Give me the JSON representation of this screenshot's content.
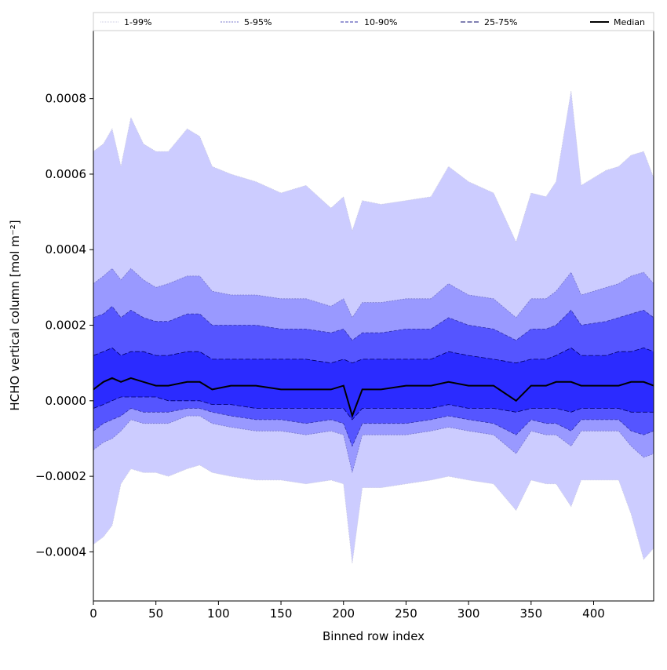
{
  "chart_data": {
    "type": "area",
    "title": "",
    "xlabel": "Binned row index",
    "ylabel": "HCHO vertical column [mol m⁻²]",
    "xlim": [
      0,
      448
    ],
    "ylim": [
      -0.00053,
      0.00098
    ],
    "grid": false,
    "legend_placement": "top (horizontal strip above plot)",
    "x_ticks": [
      {
        "value": 0,
        "label": "0"
      },
      {
        "value": 50,
        "label": "50"
      },
      {
        "value": 100,
        "label": "100"
      },
      {
        "value": 150,
        "label": "150"
      },
      {
        "value": 200,
        "label": "200"
      },
      {
        "value": 250,
        "label": "250"
      },
      {
        "value": 300,
        "label": "300"
      },
      {
        "value": 350,
        "label": "350"
      },
      {
        "value": 400,
        "label": "400"
      }
    ],
    "y_ticks": [
      {
        "value": -0.0004,
        "label": "−0.0004"
      },
      {
        "value": -0.0002,
        "label": "−0.0002"
      },
      {
        "value": 0.0,
        "label": "0.0000"
      },
      {
        "value": 0.0002,
        "label": "0.0002"
      },
      {
        "value": 0.0004,
        "label": "0.0004"
      },
      {
        "value": 0.0006,
        "label": "0.0006"
      },
      {
        "value": 0.0008,
        "label": "0.0008"
      }
    ],
    "x": [
      0,
      8,
      15,
      22,
      30,
      40,
      50,
      60,
      75,
      85,
      95,
      110,
      130,
      150,
      170,
      190,
      200,
      207,
      215,
      230,
      250,
      270,
      284,
      300,
      320,
      338,
      350,
      362,
      370,
      382,
      390,
      410,
      420,
      430,
      440,
      448
    ],
    "series": [
      {
        "name": "1-99%",
        "color": "#ccccff",
        "line_color": "#c8c8e0",
        "dash": "1,1",
        "lower": [
          -0.00038,
          -0.00036,
          -0.00033,
          -0.00022,
          -0.00018,
          -0.00019,
          -0.00019,
          -0.0002,
          -0.00018,
          -0.00017,
          -0.00019,
          -0.0002,
          -0.00021,
          -0.00021,
          -0.00022,
          -0.00021,
          -0.00022,
          -0.00043,
          -0.00023,
          -0.00023,
          -0.00022,
          -0.00021,
          -0.0002,
          -0.00021,
          -0.00022,
          -0.00029,
          -0.00021,
          -0.00022,
          -0.00022,
          -0.00028,
          -0.00021,
          -0.00021,
          -0.00021,
          -0.0003,
          -0.00042,
          -0.00039
        ],
        "upper": [
          0.00066,
          0.00068,
          0.00072,
          0.00062,
          0.00075,
          0.00068,
          0.00066,
          0.00066,
          0.00072,
          0.0007,
          0.00062,
          0.0006,
          0.00058,
          0.00055,
          0.00057,
          0.00051,
          0.00054,
          0.00045,
          0.00053,
          0.00052,
          0.00053,
          0.00054,
          0.00062,
          0.00058,
          0.00055,
          0.00042,
          0.00055,
          0.00054,
          0.00058,
          0.00082,
          0.00057,
          0.00061,
          0.00062,
          0.00065,
          0.00066,
          0.00059
        ]
      },
      {
        "name": "5-95%",
        "color": "#9999ff",
        "line_color": "#7777cc",
        "dash": "2,1.5",
        "lower": [
          -0.00013,
          -0.00011,
          -0.0001,
          -8e-05,
          -5e-05,
          -6e-05,
          -6e-05,
          -6e-05,
          -4e-05,
          -4e-05,
          -6e-05,
          -7e-05,
          -8e-05,
          -8e-05,
          -9e-05,
          -8e-05,
          -9e-05,
          -0.00019,
          -9e-05,
          -9e-05,
          -9e-05,
          -8e-05,
          -7e-05,
          -8e-05,
          -9e-05,
          -0.00014,
          -8e-05,
          -9e-05,
          -9e-05,
          -0.00012,
          -8e-05,
          -8e-05,
          -8e-05,
          -0.00012,
          -0.00015,
          -0.00014
        ],
        "upper": [
          0.00031,
          0.00033,
          0.00035,
          0.00032,
          0.00035,
          0.00032,
          0.0003,
          0.00031,
          0.00033,
          0.00033,
          0.00029,
          0.00028,
          0.00028,
          0.00027,
          0.00027,
          0.00025,
          0.00027,
          0.00022,
          0.00026,
          0.00026,
          0.00027,
          0.00027,
          0.00031,
          0.00028,
          0.00027,
          0.00022,
          0.00027,
          0.00027,
          0.00029,
          0.00034,
          0.00028,
          0.0003,
          0.00031,
          0.00033,
          0.00034,
          0.00031
        ]
      },
      {
        "name": "10-90%",
        "color": "#5555ff",
        "line_color": "#3333aa",
        "dash": "4,2",
        "lower": [
          -8e-05,
          -6e-05,
          -5e-05,
          -4e-05,
          -2e-05,
          -3e-05,
          -3e-05,
          -3e-05,
          -2e-05,
          -2e-05,
          -3e-05,
          -4e-05,
          -5e-05,
          -5e-05,
          -6e-05,
          -5e-05,
          -6e-05,
          -0.00012,
          -6e-05,
          -6e-05,
          -6e-05,
          -5e-05,
          -4e-05,
          -5e-05,
          -6e-05,
          -9e-05,
          -5e-05,
          -6e-05,
          -6e-05,
          -8e-05,
          -5e-05,
          -5e-05,
          -5e-05,
          -8e-05,
          -9e-05,
          -8e-05
        ],
        "upper": [
          0.00022,
          0.00023,
          0.00025,
          0.00022,
          0.00024,
          0.00022,
          0.00021,
          0.00021,
          0.00023,
          0.00023,
          0.0002,
          0.0002,
          0.0002,
          0.00019,
          0.00019,
          0.00018,
          0.00019,
          0.00016,
          0.00018,
          0.00018,
          0.00019,
          0.00019,
          0.00022,
          0.0002,
          0.00019,
          0.00016,
          0.00019,
          0.00019,
          0.0002,
          0.00024,
          0.0002,
          0.00021,
          0.00022,
          0.00023,
          0.00024,
          0.00022
        ]
      },
      {
        "name": "25-75%",
        "color": "#2b2bff",
        "line_color": "#000066",
        "dash": "6,2.5",
        "lower": [
          -2e-05,
          -1e-05,
          0.0,
          1e-05,
          1e-05,
          1e-05,
          1e-05,
          0.0,
          0.0,
          0.0,
          -1e-05,
          -1e-05,
          -2e-05,
          -2e-05,
          -2e-05,
          -2e-05,
          -2e-05,
          -5e-05,
          -2e-05,
          -2e-05,
          -2e-05,
          -2e-05,
          -1e-05,
          -2e-05,
          -2e-05,
          -3e-05,
          -2e-05,
          -2e-05,
          -2e-05,
          -3e-05,
          -2e-05,
          -2e-05,
          -2e-05,
          -3e-05,
          -3e-05,
          -3e-05
        ],
        "upper": [
          0.00012,
          0.00013,
          0.00014,
          0.00012,
          0.00013,
          0.00013,
          0.00012,
          0.00012,
          0.00013,
          0.00013,
          0.00011,
          0.00011,
          0.00011,
          0.00011,
          0.00011,
          0.0001,
          0.00011,
          0.0001,
          0.00011,
          0.00011,
          0.00011,
          0.00011,
          0.00013,
          0.00012,
          0.00011,
          0.0001,
          0.00011,
          0.00011,
          0.00012,
          0.00014,
          0.00012,
          0.00012,
          0.00013,
          0.00013,
          0.00014,
          0.00013
        ]
      },
      {
        "name": "Median",
        "color": "#000000",
        "values": [
          3e-05,
          5e-05,
          6e-05,
          5e-05,
          6e-05,
          5e-05,
          4e-05,
          4e-05,
          5e-05,
          5e-05,
          3e-05,
          4e-05,
          4e-05,
          3e-05,
          3e-05,
          3e-05,
          4e-05,
          -4e-05,
          3e-05,
          3e-05,
          4e-05,
          4e-05,
          5e-05,
          4e-05,
          4e-05,
          0.0,
          4e-05,
          4e-05,
          5e-05,
          5e-05,
          4e-05,
          4e-05,
          4e-05,
          5e-05,
          5e-05,
          4e-05
        ]
      }
    ]
  }
}
